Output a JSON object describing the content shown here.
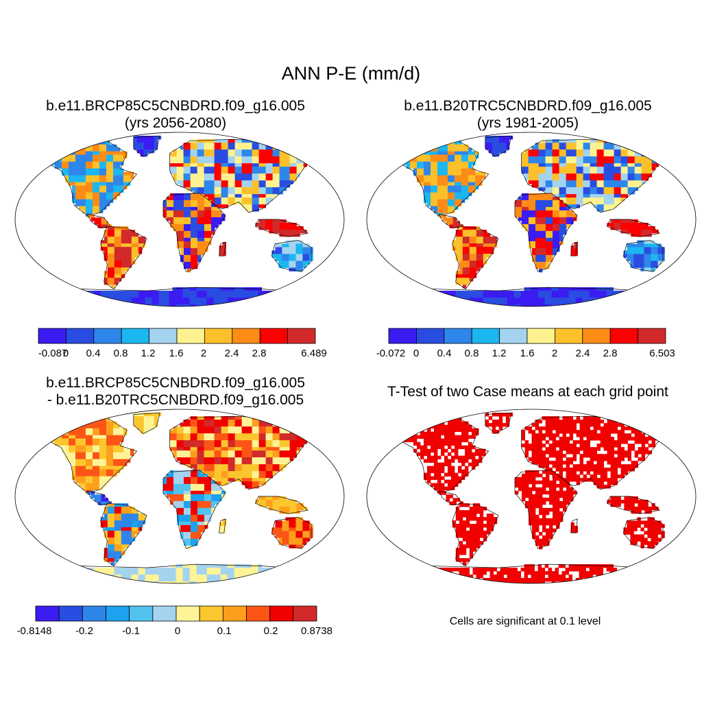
{
  "figure_title": "ANN P-E (mm/d)",
  "colors": {
    "seq10": [
      "#3b1cf2",
      "#2a4de1",
      "#2f86ea",
      "#1cb6f0",
      "#a4d3f0",
      "#fdf290",
      "#fcc02a",
      "#fd8c17",
      "#fb0000",
      "#d22a2a"
    ],
    "diff12": [
      "#3b1cf2",
      "#2a4de1",
      "#2f86ea",
      "#1ca2ee",
      "#52c3f0",
      "#a4d3f0",
      "#fff398",
      "#fcc72e",
      "#fd9f1c",
      "#fc5516",
      "#f10000",
      "#d22a2a"
    ],
    "signif": "#f10000",
    "land_outline": "#000000"
  },
  "chart_data": [
    {
      "type": "heatmap",
      "id": "panel-case",
      "title_line1": "b.e11.BRCP85C5CNBDRD.f09_g16.005",
      "title_line2": "(yrs 2056-2080)",
      "projection": "robinson",
      "colorbar_labels": [
        "-0.087",
        "0",
        "0.4",
        "0.8",
        "1.2",
        "1.6",
        "2",
        "2.4",
        "2.8",
        "6.489"
      ],
      "colorbar_range": [
        -0.087,
        6.489
      ]
    },
    {
      "type": "heatmap",
      "id": "panel-control",
      "title_line1": "b.e11.B20TRC5CNBDRD.f09_g16.005",
      "title_line2": "(yrs 1981-2005)",
      "projection": "robinson",
      "colorbar_labels": [
        "-0.072",
        "0",
        "0.4",
        "0.8",
        "1.2",
        "1.6",
        "2",
        "2.4",
        "2.8",
        "6.503"
      ],
      "colorbar_range": [
        -0.072,
        6.503
      ]
    },
    {
      "type": "heatmap",
      "id": "panel-diff",
      "title_line1": "b.e11.BRCP85C5CNBDRD.f09_g16.005",
      "title_line2": "- b.e11.B20TRC5CNBDRD.f09_g16.005",
      "projection": "robinson",
      "colorbar_labels": [
        "-0.8148",
        "-0.2",
        "-0.1",
        "0",
        "0.1",
        "0.2",
        "0.8738"
      ],
      "colorbar_range": [
        -0.8148,
        0.8738
      ]
    },
    {
      "type": "heatmap",
      "id": "panel-ttest",
      "title": "T-Test of two Case means at each grid point",
      "note": "Cells are significant at 0.1 level",
      "projection": "robinson"
    }
  ]
}
